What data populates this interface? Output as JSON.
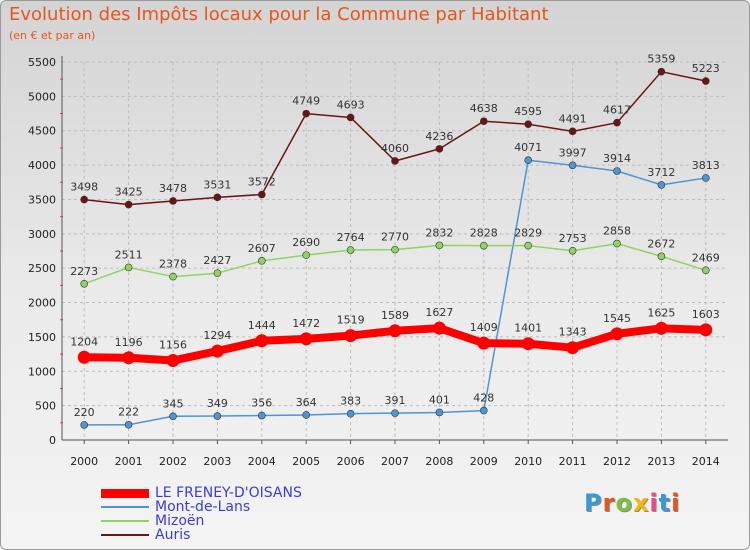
{
  "title": "Evolution des Impôts locaux pour la Commune par Habitant",
  "subtitle": "(en € et par an)",
  "logo": {
    "text": "Proxiti",
    "colors": [
      "#3a9ad9",
      "#e8551b",
      "#7cc242",
      "#f2b90c",
      "#e84d8a",
      "#3a9ad9",
      "#e8551b"
    ]
  },
  "chart_data": {
    "type": "line",
    "x": [
      "2000",
      "2001",
      "2002",
      "2003",
      "2004",
      "2005",
      "2006",
      "2007",
      "2008",
      "2009",
      "2010",
      "2011",
      "2012",
      "2013",
      "2014"
    ],
    "ylim": [
      0,
      5500
    ],
    "yticks": [
      0,
      500,
      1000,
      1500,
      2000,
      2500,
      3000,
      3500,
      4000,
      4500,
      5000,
      5500
    ],
    "grid": true,
    "legend_position": "bottom-left",
    "series": [
      {
        "name": "LE FRENEY-D'OISANS",
        "color": "#ff0000",
        "thick": true,
        "values": [
          1204,
          1196,
          1156,
          1294,
          1444,
          1472,
          1519,
          1589,
          1627,
          1409,
          1401,
          1343,
          1545,
          1625,
          1603
        ]
      },
      {
        "name": "Mont-de-Lans",
        "color": "#4f95d2",
        "thick": false,
        "values": [
          220,
          222,
          345,
          349,
          356,
          364,
          383,
          391,
          401,
          428,
          4071,
          3997,
          3914,
          3712,
          3813
        ]
      },
      {
        "name": "Mizoën",
        "color": "#8fd460",
        "thick": false,
        "values": [
          2273,
          2511,
          2378,
          2427,
          2607,
          2690,
          2764,
          2770,
          2832,
          2828,
          2829,
          2753,
          2858,
          2672,
          2469
        ]
      },
      {
        "name": "Auris",
        "color": "#6b1414",
        "thick": false,
        "values": [
          3498,
          3425,
          3478,
          3531,
          3572,
          4749,
          4693,
          4060,
          4236,
          4638,
          4595,
          4491,
          4617,
          5359,
          5223
        ]
      }
    ]
  }
}
